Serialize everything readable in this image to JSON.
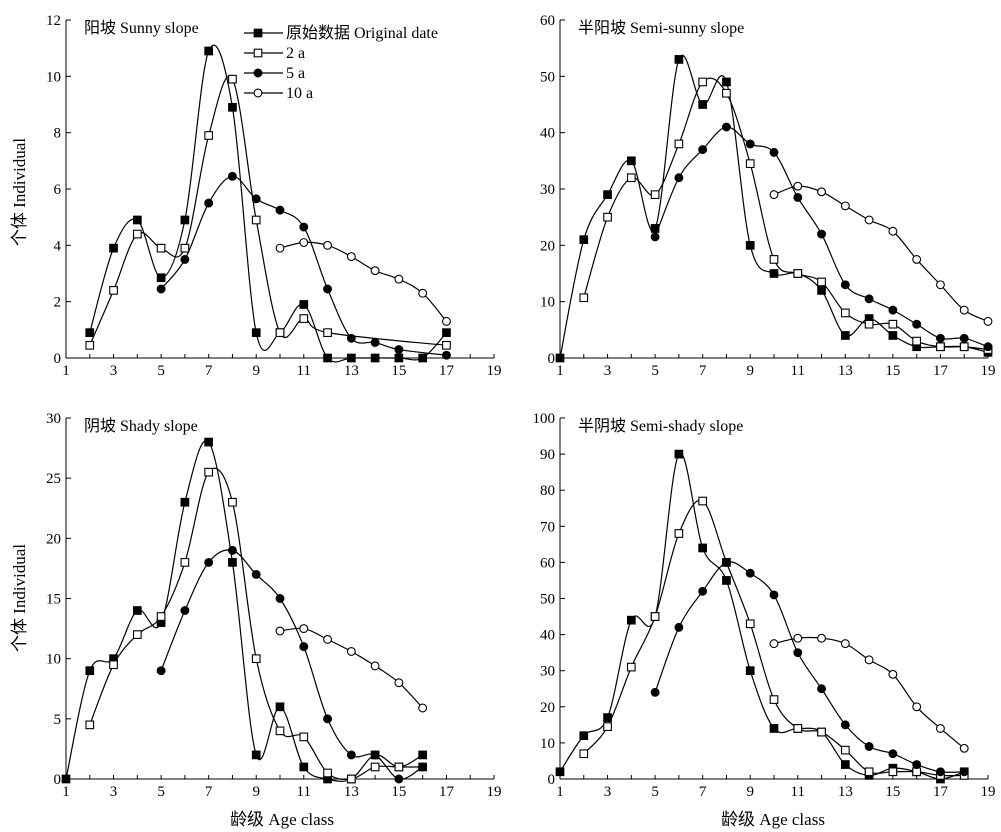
{
  "figure": {
    "y_axis_title": "个体 Individual",
    "x_axis_title": "龄级 Age class",
    "legend": [
      {
        "label": "原始数据 Original date",
        "marker": "filled-square"
      },
      {
        "label": "2 a",
        "marker": "open-square"
      },
      {
        "label": "5 a",
        "marker": "filled-circle"
      },
      {
        "label": "10 a",
        "marker": "open-circle"
      }
    ],
    "colors": {
      "stroke": "#000000",
      "background": "#ffffff"
    }
  },
  "chart_data": [
    {
      "type": "line",
      "title": "阳坡 Sunny slope",
      "xlabel": "",
      "ylabel": "个体 Individual",
      "xlim": [
        1,
        19
      ],
      "ylim": [
        0,
        12
      ],
      "x_ticks": [
        1,
        3,
        5,
        7,
        9,
        11,
        13,
        15,
        17,
        19
      ],
      "y_ticks": [
        0,
        2,
        4,
        6,
        8,
        10,
        12
      ],
      "legend_position": "top-center",
      "series": [
        {
          "name": "原始数据 Original date",
          "marker": "filled-square",
          "points": [
            [
              2,
              0.9
            ],
            [
              3,
              3.9
            ],
            [
              4,
              4.9
            ],
            [
              5,
              2.85
            ],
            [
              6,
              4.9
            ],
            [
              7,
              10.9
            ],
            [
              8,
              8.9
            ],
            [
              9,
              0.9
            ],
            [
              10,
              0.9
            ],
            [
              11,
              1.9
            ],
            [
              12,
              0
            ],
            [
              13,
              0
            ],
            [
              14,
              0
            ],
            [
              15,
              0
            ],
            [
              16,
              0
            ],
            [
              17,
              0.9
            ]
          ]
        },
        {
          "name": "2 a",
          "marker": "open-square",
          "points": [
            [
              2,
              0.45
            ],
            [
              3,
              2.4
            ],
            [
              4,
              4.4
            ],
            [
              5,
              3.9
            ],
            [
              6,
              3.9
            ],
            [
              7,
              7.9
            ],
            [
              8,
              9.9
            ],
            [
              9,
              4.9
            ],
            [
              10,
              0.9
            ],
            [
              11,
              1.4
            ],
            [
              12,
              0.9
            ],
            [
              17,
              0.45
            ]
          ]
        },
        {
          "name": "5 a",
          "marker": "filled-circle",
          "points": [
            [
              5,
              2.45
            ],
            [
              6,
              3.5
            ],
            [
              7,
              5.5
            ],
            [
              8,
              6.45
            ],
            [
              9,
              5.65
            ],
            [
              10,
              5.25
            ],
            [
              11,
              4.65
            ],
            [
              12,
              2.45
            ],
            [
              13,
              0.7
            ],
            [
              14,
              0.55
            ],
            [
              15,
              0.3
            ],
            [
              17,
              0.1
            ]
          ]
        },
        {
          "name": "10 a",
          "marker": "open-circle",
          "points": [
            [
              10,
              3.9
            ],
            [
              11,
              4.1
            ],
            [
              12,
              4.0
            ],
            [
              13,
              3.6
            ],
            [
              14,
              3.1
            ],
            [
              15,
              2.8
            ],
            [
              16,
              2.3
            ],
            [
              17,
              1.3
            ]
          ]
        }
      ]
    },
    {
      "type": "line",
      "title": "半阳坡 Semi-sunny slope",
      "xlabel": "",
      "ylabel": "",
      "xlim": [
        1,
        19
      ],
      "ylim": [
        0,
        60
      ],
      "x_ticks": [
        1,
        3,
        5,
        7,
        9,
        11,
        13,
        15,
        17,
        19
      ],
      "y_ticks": [
        0,
        10,
        20,
        30,
        40,
        50,
        60
      ],
      "series": [
        {
          "name": "原始数据 Original date",
          "marker": "filled-square",
          "points": [
            [
              1,
              0
            ],
            [
              2,
              21
            ],
            [
              3,
              29
            ],
            [
              4,
              35
            ],
            [
              5,
              23
            ],
            [
              6,
              53
            ],
            [
              7,
              45
            ],
            [
              8,
              49
            ],
            [
              9,
              20
            ],
            [
              10,
              15
            ],
            [
              11,
              15
            ],
            [
              12,
              12
            ],
            [
              13,
              4
            ],
            [
              14,
              7
            ],
            [
              15,
              4
            ],
            [
              16,
              2
            ],
            [
              17,
              2
            ],
            [
              18,
              2
            ],
            [
              19,
              1
            ]
          ]
        },
        {
          "name": "2 a",
          "marker": "open-square",
          "points": [
            [
              2,
              10.7
            ],
            [
              3,
              25
            ],
            [
              4,
              32
            ],
            [
              5,
              29
            ],
            [
              6,
              38
            ],
            [
              7,
              49
            ],
            [
              8,
              47
            ],
            [
              9,
              34.5
            ],
            [
              10,
              17.5
            ],
            [
              11,
              15
            ],
            [
              12,
              13.5
            ],
            [
              13,
              8
            ],
            [
              14,
              6
            ],
            [
              15,
              6
            ],
            [
              16,
              3
            ],
            [
              17,
              2
            ],
            [
              18,
              2
            ],
            [
              19,
              1.5
            ]
          ]
        },
        {
          "name": "5 a",
          "marker": "filled-circle",
          "points": [
            [
              5,
              21.5
            ],
            [
              6,
              32
            ],
            [
              7,
              37
            ],
            [
              8,
              41
            ],
            [
              9,
              38
            ],
            [
              10,
              36.5
            ],
            [
              11,
              28.5
            ],
            [
              12,
              22
            ],
            [
              13,
              13
            ],
            [
              14,
              10.5
            ],
            [
              15,
              8.5
            ],
            [
              16,
              6
            ],
            [
              17,
              3.5
            ],
            [
              18,
              3.5
            ],
            [
              19,
              2
            ]
          ]
        },
        {
          "name": "10 a",
          "marker": "open-circle",
          "points": [
            [
              10,
              29
            ],
            [
              11,
              30.5
            ],
            [
              12,
              29.5
            ],
            [
              13,
              27
            ],
            [
              14,
              24.5
            ],
            [
              15,
              22.5
            ],
            [
              16,
              17.5
            ],
            [
              17,
              13
            ],
            [
              18,
              8.5
            ],
            [
              19,
              6.5
            ]
          ]
        }
      ]
    },
    {
      "type": "line",
      "title": "阴坡 Shady slope",
      "xlabel": "龄级 Age class",
      "ylabel": "个体 Individual",
      "xlim": [
        1,
        19
      ],
      "ylim": [
        0,
        30
      ],
      "x_ticks": [
        1,
        3,
        5,
        7,
        9,
        11,
        13,
        15,
        17,
        19
      ],
      "y_ticks": [
        0,
        5,
        10,
        15,
        20,
        25,
        30
      ],
      "series": [
        {
          "name": "原始数据 Original date",
          "marker": "filled-square",
          "points": [
            [
              1,
              0
            ],
            [
              2,
              9
            ],
            [
              3,
              10
            ],
            [
              4,
              14
            ],
            [
              5,
              13
            ],
            [
              6,
              23
            ],
            [
              7,
              28
            ],
            [
              8,
              18
            ],
            [
              9,
              2
            ],
            [
              10,
              6
            ],
            [
              11,
              1
            ],
            [
              12,
              0
            ],
            [
              13,
              0
            ],
            [
              14,
              2
            ],
            [
              15,
              1
            ],
            [
              16,
              2
            ]
          ]
        },
        {
          "name": "2 a",
          "marker": "open-square",
          "points": [
            [
              2,
              4.5
            ],
            [
              3,
              9.5
            ],
            [
              4,
              12
            ],
            [
              5,
              13.5
            ],
            [
              6,
              18
            ],
            [
              7,
              25.5
            ],
            [
              8,
              23
            ],
            [
              9,
              10
            ],
            [
              10,
              4
            ],
            [
              11,
              3.5
            ],
            [
              12,
              0.5
            ],
            [
              13,
              0
            ],
            [
              14,
              1
            ],
            [
              15,
              1
            ],
            [
              16,
              1
            ]
          ]
        },
        {
          "name": "5 a",
          "marker": "filled-circle",
          "points": [
            [
              5,
              9
            ],
            [
              6,
              14
            ],
            [
              7,
              18
            ],
            [
              8,
              19
            ],
            [
              9,
              17
            ],
            [
              10,
              15
            ],
            [
              11,
              11
            ],
            [
              12,
              5
            ],
            [
              13,
              2
            ],
            [
              14,
              2
            ],
            [
              15,
              0
            ],
            [
              16,
              1
            ]
          ]
        },
        {
          "name": "10 a",
          "marker": "open-circle",
          "points": [
            [
              10,
              12.3
            ],
            [
              11,
              12.5
            ],
            [
              12,
              11.6
            ],
            [
              13,
              10.6
            ],
            [
              14,
              9.4
            ],
            [
              15,
              8
            ],
            [
              16,
              5.9
            ]
          ]
        }
      ]
    },
    {
      "type": "line",
      "title": "半阴坡 Semi-shady slope",
      "xlabel": "龄级 Age class",
      "ylabel": "",
      "xlim": [
        1,
        19
      ],
      "ylim": [
        0,
        100
      ],
      "x_ticks": [
        1,
        3,
        5,
        7,
        9,
        11,
        13,
        15,
        17,
        19
      ],
      "y_ticks": [
        0,
        10,
        20,
        30,
        40,
        50,
        60,
        70,
        80,
        90,
        100
      ],
      "series": [
        {
          "name": "原始数据 Original date",
          "marker": "filled-square",
          "points": [
            [
              1,
              2
            ],
            [
              2,
              12
            ],
            [
              3,
              17
            ],
            [
              4,
              44
            ],
            [
              5,
              45
            ],
            [
              6,
              90
            ],
            [
              7,
              64
            ],
            [
              8,
              55
            ],
            [
              9,
              30
            ],
            [
              10,
              14
            ],
            [
              11,
              14
            ],
            [
              12,
              13
            ],
            [
              13,
              4
            ],
            [
              14,
              1
            ],
            [
              15,
              3
            ],
            [
              16,
              2
            ],
            [
              17,
              0
            ],
            [
              18,
              2
            ]
          ]
        },
        {
          "name": "2 a",
          "marker": "open-square",
          "points": [
            [
              2,
              7
            ],
            [
              3,
              14.5
            ],
            [
              4,
              31
            ],
            [
              5,
              45
            ],
            [
              6,
              68
            ],
            [
              7,
              77
            ],
            [
              8,
              60
            ],
            [
              9,
              43
            ],
            [
              10,
              22
            ],
            [
              11,
              14
            ],
            [
              12,
              13
            ],
            [
              13,
              8
            ],
            [
              14,
              2
            ],
            [
              15,
              2
            ],
            [
              16,
              2
            ],
            [
              17,
              1
            ],
            [
              18,
              1
            ]
          ]
        },
        {
          "name": "5 a",
          "marker": "filled-circle",
          "points": [
            [
              5,
              24
            ],
            [
              6,
              42
            ],
            [
              7,
              52
            ],
            [
              8,
              60
            ],
            [
              9,
              57
            ],
            [
              10,
              51
            ],
            [
              11,
              35
            ],
            [
              12,
              25
            ],
            [
              13,
              15
            ],
            [
              14,
              9
            ],
            [
              15,
              7
            ],
            [
              16,
              4
            ],
            [
              17,
              2
            ],
            [
              18,
              2
            ]
          ]
        },
        {
          "name": "10 a",
          "marker": "open-circle",
          "points": [
            [
              10,
              37.5
            ],
            [
              11,
              39
            ],
            [
              12,
              39
            ],
            [
              13,
              37.5
            ],
            [
              14,
              33
            ],
            [
              15,
              29
            ],
            [
              16,
              20
            ],
            [
              17,
              14
            ],
            [
              18,
              8.5
            ]
          ]
        }
      ]
    }
  ]
}
